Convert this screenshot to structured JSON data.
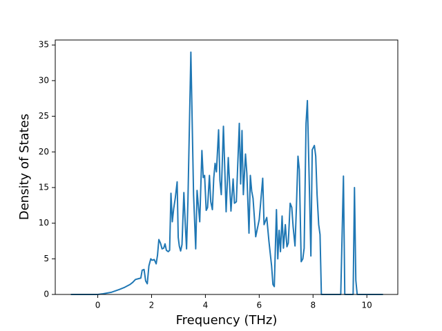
{
  "chart_data": {
    "type": "line",
    "xlabel": "Frequency (THz)",
    "ylabel": "Density of States",
    "x": [
      -1.0,
      0,
      0.2,
      0.5,
      0.8,
      1.0,
      1.2,
      1.3,
      1.4,
      1.5,
      1.6,
      1.65,
      1.72,
      1.78,
      1.84,
      1.9,
      1.97,
      2.02,
      2.1,
      2.17,
      2.22,
      2.27,
      2.33,
      2.39,
      2.45,
      2.5,
      2.55,
      2.62,
      2.67,
      2.72,
      2.77,
      2.82,
      2.88,
      2.95,
      2.99,
      3.03,
      3.08,
      3.13,
      3.2,
      3.25,
      3.3,
      3.35,
      3.46,
      3.51,
      3.56,
      3.64,
      3.69,
      3.79,
      3.87,
      3.92,
      3.97,
      4.03,
      4.08,
      4.15,
      4.2,
      4.26,
      4.31,
      4.36,
      4.41,
      4.49,
      4.54,
      4.59,
      4.67,
      4.77,
      4.85,
      4.95,
      5.03,
      5.08,
      5.15,
      5.26,
      5.31,
      5.36,
      5.41,
      5.49,
      5.54,
      5.62,
      5.67,
      5.72,
      5.77,
      5.87,
      6.0,
      6.13,
      6.18,
      6.28,
      6.36,
      6.46,
      6.51,
      6.56,
      6.64,
      6.69,
      6.74,
      6.79,
      6.85,
      6.9,
      6.97,
      7.03,
      7.08,
      7.15,
      7.21,
      7.26,
      7.33,
      7.38,
      7.44,
      7.49,
      7.56,
      7.62,
      7.67,
      7.74,
      7.79,
      7.87,
      7.92,
      7.97,
      8.05,
      8.1,
      8.15,
      8.21,
      8.26,
      8.31,
      9.03,
      9.13,
      9.18,
      9.49,
      9.54,
      9.59,
      9.64,
      10.6
    ],
    "values": [
      0,
      0,
      0.1,
      0.3,
      0.7,
      1.0,
      1.4,
      1.7,
      2.1,
      2.2,
      2.3,
      3.4,
      3.5,
      1.9,
      1.5,
      4.0,
      5.0,
      4.8,
      4.9,
      4.3,
      5.5,
      7.7,
      7.2,
      6.4,
      6.5,
      7.1,
      6.2,
      6.0,
      6.2,
      14.2,
      10.2,
      12.0,
      13.5,
      15.8,
      8.0,
      6.8,
      6.1,
      7.0,
      14.3,
      10.0,
      6.4,
      13.0,
      34.0,
      24.0,
      14.0,
      6.4,
      14.6,
      10.2,
      20.2,
      16.4,
      16.7,
      11.8,
      12.2,
      16.7,
      13.0,
      11.9,
      16.3,
      18.4,
      17.2,
      23.1,
      16.0,
      14.0,
      23.6,
      11.6,
      19.2,
      11.7,
      16.2,
      12.8,
      13.0,
      24.0,
      15.5,
      23.0,
      14.0,
      19.7,
      17.0,
      8.6,
      16.7,
      14.5,
      13.5,
      8.1,
      10.5,
      16.3,
      9.8,
      10.8,
      7.5,
      4.0,
      1.4,
      1.1,
      11.9,
      5.0,
      9.0,
      6.0,
      11.0,
      6.5,
      9.8,
      6.7,
      7.2,
      12.8,
      12.2,
      9.5,
      6.8,
      12.0,
      19.4,
      17.5,
      4.6,
      5.0,
      6.5,
      24.0,
      27.2,
      14.0,
      5.4,
      20.3,
      20.9,
      19.4,
      14.0,
      9.8,
      8.4,
      0,
      0,
      16.6,
      0,
      0,
      15.0,
      2.0,
      0,
      0
    ],
    "color": "#1f77b4",
    "xlim": [
      -1.58,
      11.15
    ],
    "xticks": [
      0,
      2,
      4,
      6,
      8,
      10
    ],
    "ylim": [
      0,
      35.7
    ],
    "yticks": [
      0,
      5,
      10,
      15,
      20,
      25,
      30,
      35
    ],
    "grid": false
  }
}
